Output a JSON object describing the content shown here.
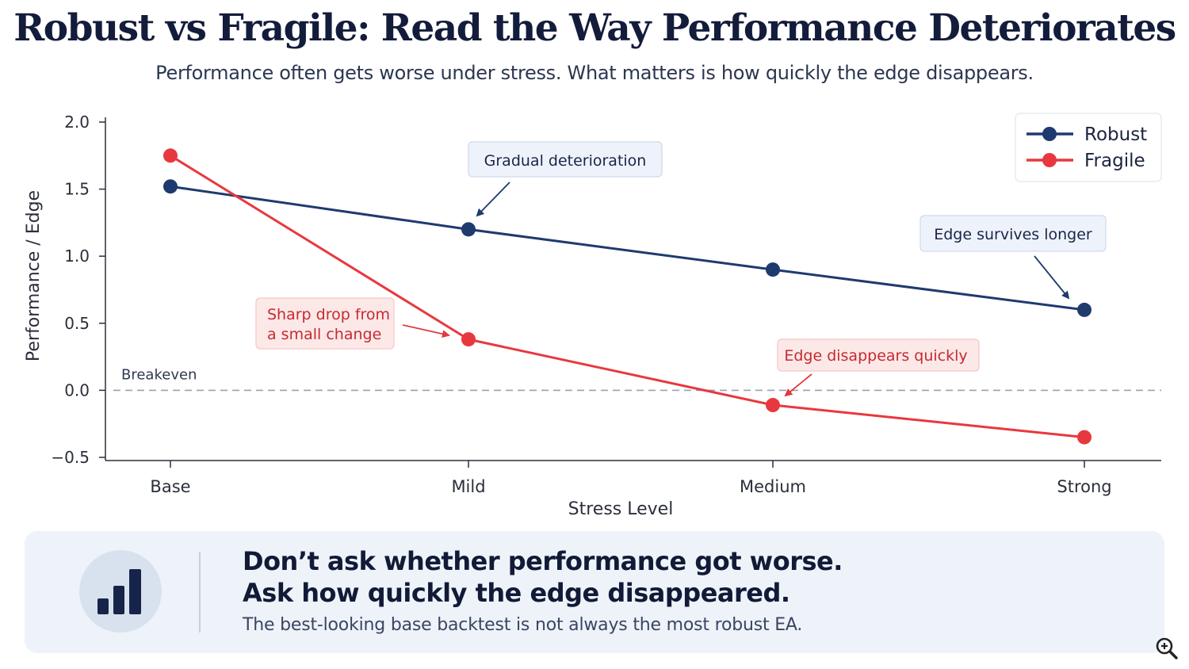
{
  "header": {
    "title": "Robust vs Fragile: Read the Way Performance Deteriorates",
    "subtitle": "Performance often gets worse under stress. What matters is how quickly the edge disappears."
  },
  "chart_data": {
    "type": "line",
    "categories": [
      "Base",
      "Mild",
      "Medium",
      "Strong"
    ],
    "series": [
      {
        "name": "Robust",
        "values": [
          1.52,
          1.2,
          0.9,
          0.6
        ],
        "color": "#1f3a6e"
      },
      {
        "name": "Fragile",
        "values": [
          1.75,
          0.38,
          -0.11,
          -0.35
        ],
        "color": "#e8383f"
      }
    ],
    "xlabel": "Stress Level",
    "ylabel": "Performance / Edge",
    "ylim": [
      -0.5,
      2.0
    ],
    "yticks": [
      "2.0",
      "1.5",
      "1.0",
      "0.5",
      "0.0",
      "−0.5"
    ],
    "grid": false,
    "legend_position": "top-right",
    "reference_line": {
      "label": "Breakeven",
      "value": 0.0
    },
    "annotations": [
      {
        "text": "Gradual deterioration",
        "series": "Robust",
        "category": "Mild",
        "style": "robust"
      },
      {
        "text": "Edge survives longer",
        "series": "Robust",
        "category": "Strong",
        "style": "robust"
      },
      {
        "text": "Sharp drop from\na small change",
        "series": "Fragile",
        "category": "Mild",
        "style": "fragile"
      },
      {
        "text": "Edge disappears quickly",
        "series": "Fragile",
        "category": "Medium",
        "style": "fragile"
      }
    ]
  },
  "takeaway": {
    "headline_line1": "Don’t ask whether performance got worse.",
    "headline_line2": "Ask how quickly the edge disappeared.",
    "note": "The best-looking base backtest is not always the most robust EA.",
    "icon": "bar-chart-icon"
  },
  "toolbar": {
    "zoom_icon": "zoom-in-icon"
  }
}
